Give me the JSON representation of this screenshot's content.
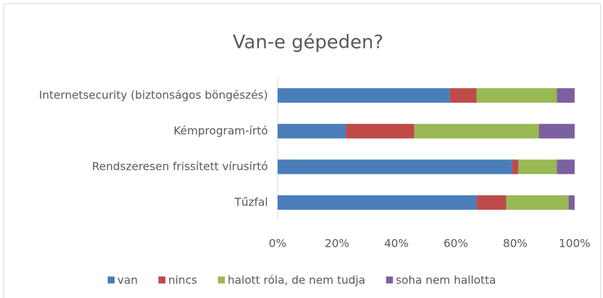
{
  "chart_data": {
    "type": "stacked-bar-horizontal",
    "title": "Van-e gépeden?",
    "categories": [
      "Internetsecurity (biztonságos böngészés)",
      "Kémprogram-írtó",
      "Rendszeresen frissített vírusírtó",
      "Tűzfal"
    ],
    "series": [
      {
        "name": "van",
        "color": "#4a7ebb",
        "values": [
          58,
          23,
          79,
          67
        ]
      },
      {
        "name": "nincs",
        "color": "#be4b48",
        "values": [
          9,
          23,
          2,
          10
        ]
      },
      {
        "name": "halott róla, de nem tudja",
        "color": "#98b954",
        "values": [
          27,
          42,
          13,
          21
        ]
      },
      {
        "name": "soha nem hallotta",
        "color": "#7d60a0",
        "values": [
          6,
          12,
          6,
          2
        ]
      }
    ],
    "xlim": [
      0,
      100
    ],
    "xticks": [
      {
        "value": 0,
        "label": "0%"
      },
      {
        "value": 20,
        "label": "20%"
      },
      {
        "value": 40,
        "label": "40%"
      },
      {
        "value": 60,
        "label": "60%"
      },
      {
        "value": 80,
        "label": "80%"
      },
      {
        "value": 100,
        "label": "100%"
      }
    ],
    "grid": false,
    "legend": "bottom"
  }
}
